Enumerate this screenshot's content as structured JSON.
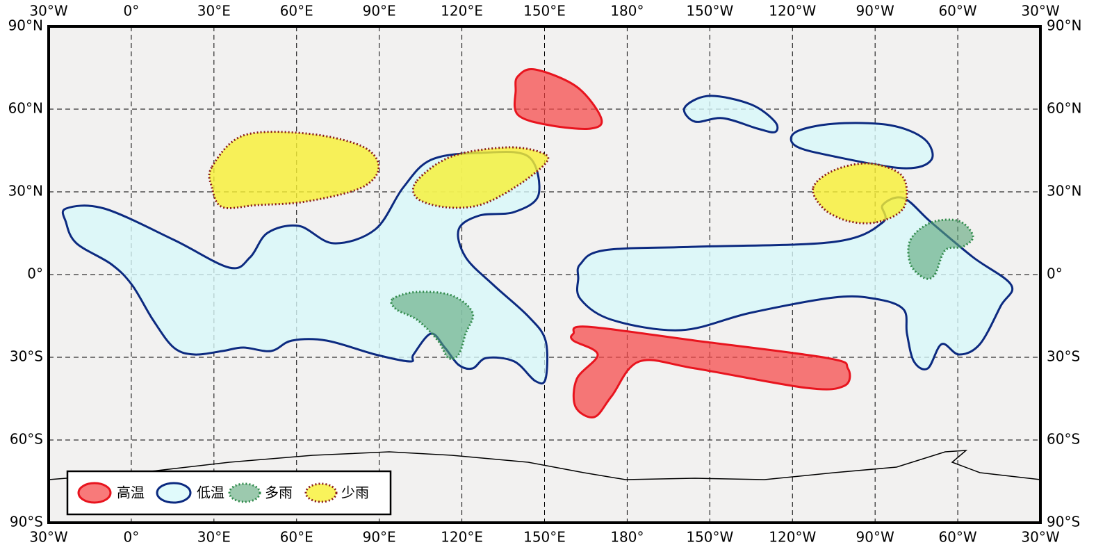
{
  "lon_labels": [
    "30°W",
    "0°",
    "30°E",
    "60°E",
    "90°E",
    "120°E",
    "150°E",
    "180°",
    "150°W",
    "120°W",
    "90°W",
    "60°W",
    "30°W"
  ],
  "lat_labels": [
    "90°N",
    "60°N",
    "30°N",
    "0°",
    "30°S",
    "60°S",
    "90°S"
  ],
  "legend": [
    "高温",
    "低温",
    "多雨",
    "少雨"
  ]
}
